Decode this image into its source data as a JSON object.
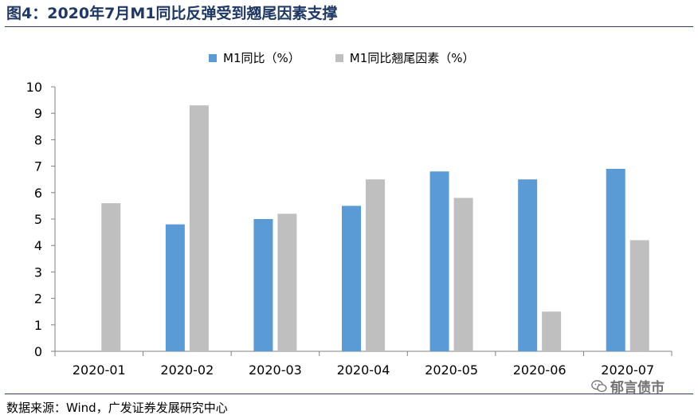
{
  "header": {
    "title": "图4：2020年7月M1同比反弹受到翘尾因素支撑"
  },
  "footer": {
    "source": "数据来源：Wind，广发证券发展研究中心",
    "watermark": "郁言债市",
    "watermark_icon": "wechat-icon"
  },
  "colors": {
    "m1": "#5b9bd5",
    "tail": "#bfbfbf",
    "title": "#1f3864"
  },
  "chart_data": {
    "type": "bar",
    "title": "",
    "xlabel": "",
    "ylabel": "",
    "categories": [
      "2020-01",
      "2020-02",
      "2020-03",
      "2020-04",
      "2020-05",
      "2020-06",
      "2020-07"
    ],
    "series": [
      {
        "name": "M1同比（%）",
        "values": [
          null,
          4.8,
          5.0,
          5.5,
          6.8,
          6.5,
          6.9
        ]
      },
      {
        "name": "M1同比翘尾因素（%）",
        "values": [
          5.6,
          9.3,
          5.2,
          6.5,
          5.8,
          1.5,
          4.2
        ]
      }
    ],
    "ylim": [
      0,
      10
    ],
    "yticks": [
      0,
      1,
      2,
      3,
      4,
      5,
      6,
      7,
      8,
      9,
      10
    ],
    "grid": false,
    "legend": "top-center"
  }
}
